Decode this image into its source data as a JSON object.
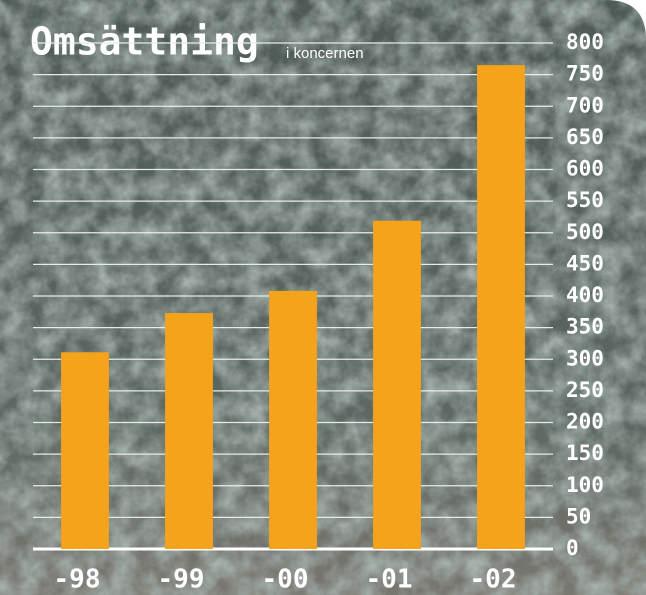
{
  "chart_data": {
    "type": "bar",
    "title": "Omsättning",
    "subtitle": "i koncernen",
    "categories": [
      "-98",
      "-99",
      "-00",
      "-01",
      "-02"
    ],
    "values": [
      311,
      373,
      408,
      519,
      765
    ],
    "color": "#f5a31a",
    "ylim": [
      0,
      800
    ],
    "yticks": [
      0,
      50,
      100,
      150,
      200,
      250,
      300,
      350,
      400,
      450,
      500,
      550,
      600,
      650,
      700,
      750,
      800
    ],
    "grid": true
  }
}
